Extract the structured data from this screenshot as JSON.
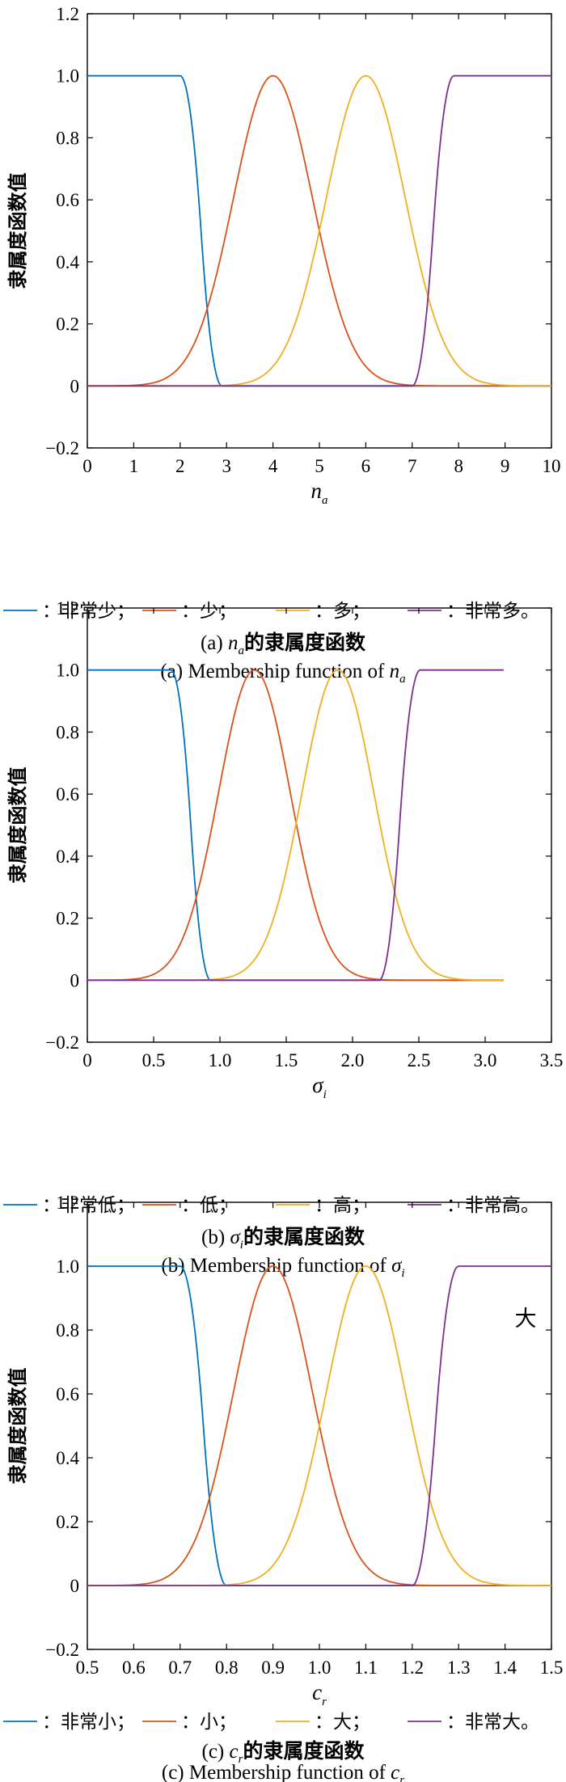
{
  "chart_data": [
    {
      "type": "line",
      "id": "a",
      "ylabel": "隶属度函数值",
      "xlabel": {
        "var": "n",
        "sub": "a"
      },
      "xlim": [
        0,
        10
      ],
      "ylim": [
        -0.2,
        1.2
      ],
      "xticks": [
        "0",
        "1",
        "2",
        "3",
        "4",
        "5",
        "6",
        "7",
        "8",
        "9",
        "10"
      ],
      "yticks": [
        "1.2",
        "1.0",
        "0.8",
        "0.6",
        "0.4",
        "0.2",
        "0",
        "−0.2"
      ],
      "xtick_values": [
        0,
        1,
        2,
        3,
        4,
        5,
        6,
        7,
        8,
        9,
        10
      ],
      "ytick_values": [
        1.2,
        1.0,
        0.8,
        0.6,
        0.4,
        0.2,
        0,
        -0.2
      ],
      "x_domain": [
        0,
        10
      ],
      "series": [
        {
          "name": "：非常少；",
          "color": "#0072BD",
          "shape": "z",
          "params": {
            "a": 2,
            "b": 2.9
          }
        },
        {
          "name": "：少；",
          "color": "#D95319",
          "shape": "gauss",
          "params": {
            "c": 4,
            "sigma": 0.85
          }
        },
        {
          "name": "：多；",
          "color": "#EDB120",
          "shape": "gauss",
          "params": {
            "c": 6,
            "sigma": 0.85
          }
        },
        {
          "name": "：非常多。",
          "color": "#7E2F8E",
          "shape": "s",
          "params": {
            "a": 7,
            "b": 7.9
          }
        }
      ],
      "caption_zh": {
        "prefix": "(a) ",
        "var": "n",
        "sub": "a",
        "suffix": "的隶属度函数"
      },
      "caption_en": {
        "prefix": "(a) Membership function of ",
        "var": "n",
        "sub": "a"
      }
    },
    {
      "type": "line",
      "id": "b",
      "ylabel": "隶属度函数值",
      "xlabel": {
        "var": "σ",
        "sub": "i"
      },
      "xlim": [
        0,
        3.5
      ],
      "ylim": [
        -0.2,
        1.2
      ],
      "xticks": [
        "0",
        "0.5",
        "1.0",
        "1.5",
        "2.0",
        "2.5",
        "3.0",
        "3.5"
      ],
      "yticks": [
        "1.2",
        "1.0",
        "0.8",
        "0.6",
        "0.4",
        "0.2",
        "0",
        "−0.2"
      ],
      "xtick_values": [
        0,
        0.5,
        1.0,
        1.5,
        2.0,
        2.5,
        3.0,
        3.5
      ],
      "ytick_values": [
        1.2,
        1.0,
        0.8,
        0.6,
        0.4,
        0.2,
        0,
        -0.2
      ],
      "x_domain": [
        0,
        3.14
      ],
      "series": [
        {
          "name": "：非常低；",
          "color": "#0072BD",
          "shape": "z",
          "params": {
            "a": 0.63,
            "b": 0.93
          }
        },
        {
          "name": "：低；",
          "color": "#D95319",
          "shape": "gauss",
          "params": {
            "c": 1.26,
            "sigma": 0.27
          }
        },
        {
          "name": "：高；",
          "color": "#EDB120",
          "shape": "gauss",
          "params": {
            "c": 1.89,
            "sigma": 0.27
          }
        },
        {
          "name": "：非常高。",
          "color": "#7E2F8E",
          "shape": "s",
          "params": {
            "a": 2.2,
            "b": 2.51
          }
        }
      ],
      "caption_zh": {
        "prefix": "(b) ",
        "var": "σ",
        "sub": "i",
        "suffix": "的隶属度函数"
      },
      "caption_en": {
        "prefix": "(b) Membership function of ",
        "var": "σ",
        "sub": "i"
      }
    },
    {
      "type": "line",
      "id": "c",
      "ylabel": "隶属度函数值",
      "xlabel": {
        "var": "c",
        "sub": "r"
      },
      "xlim": [
        0.5,
        1.5
      ],
      "ylim": [
        -0.2,
        1.2
      ],
      "xticks": [
        "0.5",
        "0.6",
        "0.7",
        "0.8",
        "0.9",
        "1.0",
        "1.1",
        "1.2",
        "1.3",
        "1.4",
        "1.5"
      ],
      "yticks": [
        "1.2",
        "1.0",
        "0.8",
        "0.6",
        "0.4",
        "0.2",
        "0",
        "−0.2"
      ],
      "xtick_values": [
        0.5,
        0.6,
        0.7,
        0.8,
        0.9,
        1.0,
        1.1,
        1.2,
        1.3,
        1.4,
        1.5
      ],
      "ytick_values": [
        1.2,
        1.0,
        0.8,
        0.6,
        0.4,
        0.2,
        0,
        -0.2
      ],
      "x_domain": [
        0.5,
        1.5
      ],
      "annotation": "大",
      "series": [
        {
          "name": "：非常小；",
          "color": "#0072BD",
          "shape": "z",
          "params": {
            "a": 0.7,
            "b": 0.8
          }
        },
        {
          "name": "：小；",
          "color": "#D95319",
          "shape": "gauss",
          "params": {
            "c": 0.9,
            "sigma": 0.085
          }
        },
        {
          "name": "：大；",
          "color": "#EDB120",
          "shape": "gauss",
          "params": {
            "c": 1.1,
            "sigma": 0.085
          }
        },
        {
          "name": "：非常大。",
          "color": "#7E2F8E",
          "shape": "s",
          "params": {
            "a": 1.2,
            "b": 1.3
          }
        }
      ],
      "caption_zh": {
        "prefix": "(c) ",
        "var": "c",
        "sub": "r",
        "suffix": "的隶属度函数"
      },
      "caption_en": {
        "prefix": "(c) Membership function of ",
        "var": "c",
        "sub": "r"
      }
    }
  ]
}
